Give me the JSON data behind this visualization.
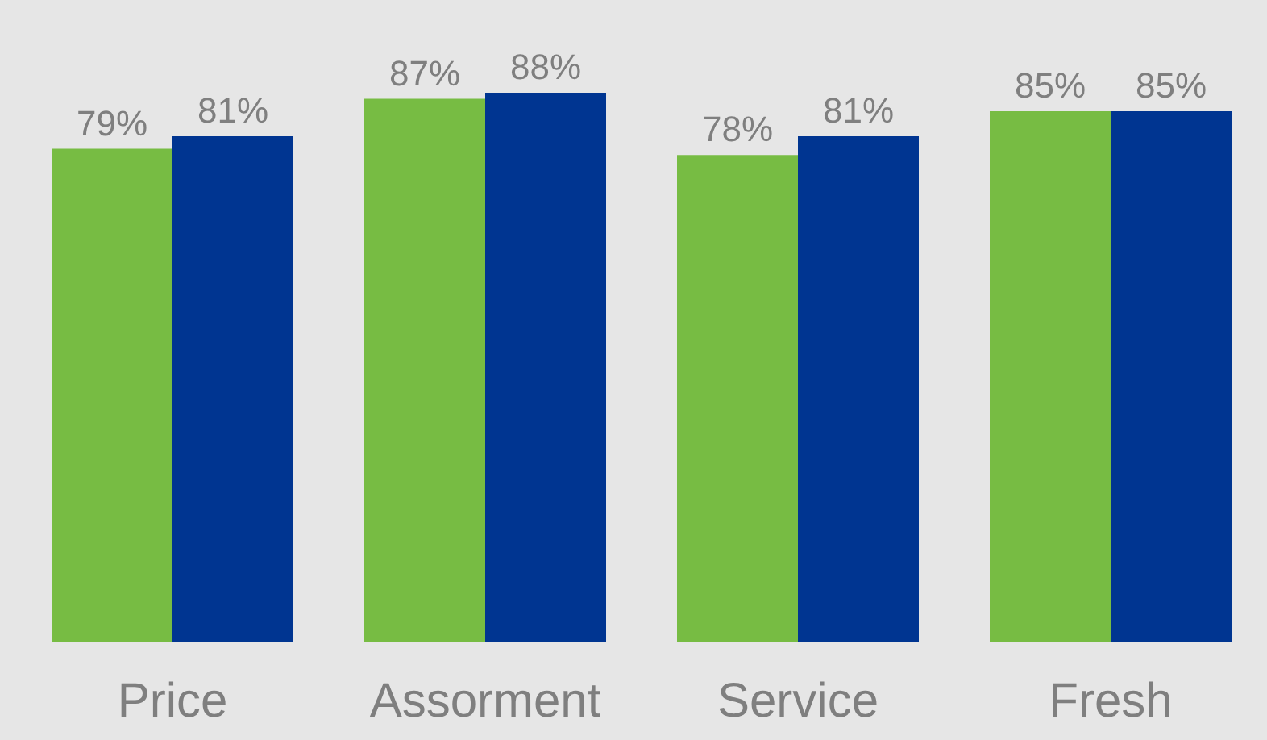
{
  "chart_data": {
    "type": "bar",
    "categories": [
      "Price",
      "Assorment",
      "Service",
      "Fresh"
    ],
    "series": [
      {
        "color": "#77bc43",
        "values": [
          79,
          87,
          78,
          85
        ],
        "value_labels": [
          "79%",
          "87%",
          "78%",
          "85%"
        ]
      },
      {
        "color": "#003591",
        "values": [
          81,
          88,
          81,
          85
        ],
        "value_labels": [
          "81%",
          "88%",
          "81%",
          "85%"
        ]
      }
    ],
    "tick_labels": "x"
  }
}
